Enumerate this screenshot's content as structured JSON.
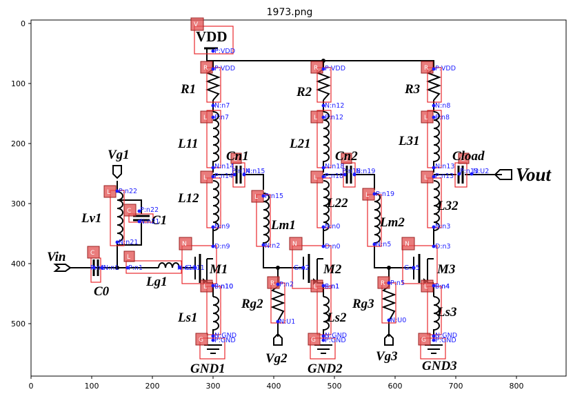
{
  "title": "1973.png",
  "axes": {
    "x_ticks": [
      "0",
      "100",
      "200",
      "300",
      "400",
      "500",
      "600",
      "700",
      "800"
    ],
    "y_ticks": [
      "0",
      "100",
      "200",
      "300",
      "400",
      "500"
    ]
  },
  "circuit": {
    "labels": {
      "vdd": "VDD",
      "r1": "R1",
      "r2": "R2",
      "r3": "R3",
      "l11": "L11",
      "l12": "L12",
      "l21": "L21",
      "l22": "L22",
      "l31": "L31",
      "l32": "L32",
      "cn1": "Cn1",
      "cn2": "Cn2",
      "cload": "Cload",
      "vout": "Vout",
      "vg1": "Vg1",
      "lv1": "Lv1",
      "c1": "C1",
      "vin": "Vin",
      "c0": "C0",
      "lg1": "Lg1",
      "lm1": "Lm1",
      "lm2": "Lm2",
      "m1": "M1",
      "m2": "M2",
      "m3": "M3",
      "rg2": "Rg2",
      "rg3": "Rg3",
      "ls1": "Ls1",
      "ls2": "Ls2",
      "ls3": "Ls3",
      "vg2": "Vg2",
      "vg3": "Vg3",
      "gnd1": "GND1",
      "gnd2": "GND2",
      "gnd3": "GND3"
    },
    "badges": {
      "v": "V",
      "r": "R",
      "l": "L",
      "c": "C",
      "n": "N",
      "g": "G"
    },
    "pins": {
      "vdd_p": "P:VDD",
      "r1_p": "P:VDD",
      "r1_n": "N:n7",
      "r2_p": "P:VDD",
      "r2_n": "N:n12",
      "r3_p": "P:VDD",
      "r3_n": "N:n8",
      "l11_p": "P:n7",
      "l11_n": "N:n14",
      "l21_p": "P:n12",
      "l21_n": "N:n18",
      "l31_p": "P:n8",
      "l31_n": "N:n13",
      "l12_p": "P:n14",
      "l12_n": "N:n9",
      "l22_p": "P:n18",
      "l22_n": "N:n0",
      "l32_p": "P:n13",
      "l32_n": "N:n3",
      "cn1_p": "P:n14",
      "cn1_n": "N:n15",
      "cn2_p": "P:n18",
      "cn2_n": "N:n19",
      "cload_p": "P:n13",
      "cload_n": "N:U2",
      "lm1_p": "P:n15",
      "lm1_n": "N:n2",
      "lm2_p": "P:n19",
      "lm2_n": "N:n5",
      "lv1_p": "P:n22",
      "lv1_n": "N:n21",
      "c1_p": "P:n22",
      "c1_n": "N:n21",
      "c0_p": "P:n1",
      "c0_n": "N:n1",
      "lg1_p": "P:n1",
      "lg1_n": "N:n11",
      "m1_d": "D:n9",
      "m1_g": "G:n11",
      "m1_s": "S:n10",
      "m2_d": "D:n0",
      "m2_g": "G:n2",
      "m2_s": "S:n1",
      "m3_d": "D:n3",
      "m3_g": "G:n5",
      "m3_s": "S:n4",
      "ls1_p": "P:n10",
      "ls1_n": "N:GND",
      "ls2_p": "P:n1",
      "ls2_n": "N:GND",
      "ls3_p": "P:n4",
      "ls3_n": "N:GND",
      "rg2_p": "P:n2",
      "rg2_n": "N:U1",
      "rg3_p": "P:n5",
      "rg3_n": "N:U0",
      "gnd1_p": "P:GND",
      "gnd2_p": "P:GND",
      "gnd3_p": "P:GND"
    }
  }
}
